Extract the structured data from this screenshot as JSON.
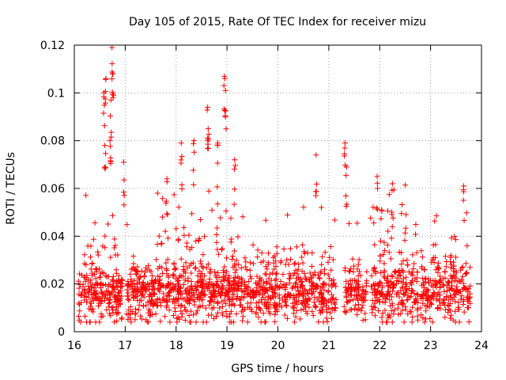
{
  "chart_data": {
    "type": "scatter",
    "title": "Day 105 of 2015, Rate Of TEC Index for receiver mizu",
    "xlabel": "GPS time / hours",
    "ylabel": "ROTI / TECUs",
    "xlim": [
      16,
      24
    ],
    "ylim": [
      0,
      0.12
    ],
    "x_ticks": [
      16,
      17,
      18,
      19,
      20,
      21,
      22,
      23,
      24
    ],
    "y_ticks": [
      0,
      0.02,
      0.04,
      0.06,
      0.08,
      0.1,
      0.12
    ],
    "x_tick_labels": [
      "16",
      "17",
      "18",
      "19",
      "20",
      "21",
      "22",
      "23",
      "24"
    ],
    "y_tick_labels": [
      "0",
      "0.02",
      "0.04",
      "0.06",
      "0.08",
      "0.1",
      "0.12"
    ],
    "grid": true,
    "marker": "+",
    "series": [
      {
        "name": "ROTI",
        "color": "#ff0000",
        "x_range": [
          16.08,
          23.78
        ],
        "typical_range": [
          0.005,
          0.045
        ],
        "approx_points": 2000,
        "notable_points": [
          {
            "x": 16.58,
            "y": 0.1
          },
          {
            "x": 16.62,
            "y": 0.106
          },
          {
            "x": 16.74,
            "y": 0.119
          },
          {
            "x": 16.76,
            "y": 0.108
          },
          {
            "x": 16.72,
            "y": 0.097
          },
          {
            "x": 16.6,
            "y": 0.078
          },
          {
            "x": 16.7,
            "y": 0.08
          },
          {
            "x": 16.97,
            "y": 0.071
          },
          {
            "x": 17.82,
            "y": 0.064
          },
          {
            "x": 18.1,
            "y": 0.079
          },
          {
            "x": 18.35,
            "y": 0.08
          },
          {
            "x": 18.62,
            "y": 0.094
          },
          {
            "x": 18.63,
            "y": 0.085
          },
          {
            "x": 18.82,
            "y": 0.079
          },
          {
            "x": 18.95,
            "y": 0.107
          },
          {
            "x": 18.97,
            "y": 0.101
          },
          {
            "x": 19.15,
            "y": 0.072
          },
          {
            "x": 20.75,
            "y": 0.074
          },
          {
            "x": 21.32,
            "y": 0.079
          },
          {
            "x": 21.35,
            "y": 0.069
          },
          {
            "x": 21.95,
            "y": 0.065
          },
          {
            "x": 22.25,
            "y": 0.062
          },
          {
            "x": 23.65,
            "y": 0.061
          }
        ]
      }
    ]
  }
}
